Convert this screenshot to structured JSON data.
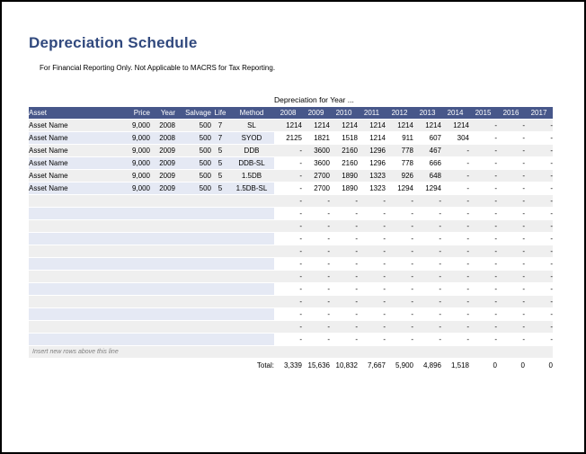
{
  "page": {
    "title": "Depreciation Schedule",
    "subtitle": "For Financial Reporting Only. Not Applicable to MACRS for Tax Reporting."
  },
  "table": {
    "group_header": "Depreciation for Year ...",
    "columns": [
      "Asset",
      "Price",
      "Year",
      "Salvage",
      "Life",
      "Method"
    ],
    "year_columns": [
      "2008",
      "2009",
      "2010",
      "2011",
      "2012",
      "2013",
      "2014",
      "2015",
      "2016",
      "2017"
    ],
    "rows": [
      {
        "asset": "Asset Name",
        "price": "9,000",
        "year": "2008",
        "salvage": "500",
        "life": "7",
        "method": "SL",
        "values": [
          "1214",
          "1214",
          "1214",
          "1214",
          "1214",
          "1214",
          "1214",
          "-",
          "-",
          "-"
        ]
      },
      {
        "asset": "Asset Name",
        "price": "9,000",
        "year": "2008",
        "salvage": "500",
        "life": "7",
        "method": "SYOD",
        "values": [
          "2125",
          "1821",
          "1518",
          "1214",
          "911",
          "607",
          "304",
          "-",
          "-",
          "-"
        ]
      },
      {
        "asset": "Asset Name",
        "price": "9,000",
        "year": "2009",
        "salvage": "500",
        "life": "5",
        "method": "DDB",
        "values": [
          "-",
          "3600",
          "2160",
          "1296",
          "778",
          "467",
          "-",
          "-",
          "-",
          "-"
        ]
      },
      {
        "asset": "Asset Name",
        "price": "9,000",
        "year": "2009",
        "salvage": "500",
        "life": "5",
        "method": "DDB-SL",
        "values": [
          "-",
          "3600",
          "2160",
          "1296",
          "778",
          "666",
          "-",
          "-",
          "-",
          "-"
        ]
      },
      {
        "asset": "Asset Name",
        "price": "9,000",
        "year": "2009",
        "salvage": "500",
        "life": "5",
        "method": "1.5DB",
        "values": [
          "-",
          "2700",
          "1890",
          "1323",
          "926",
          "648",
          "-",
          "-",
          "-",
          "-"
        ]
      },
      {
        "asset": "Asset Name",
        "price": "9,000",
        "year": "2009",
        "salvage": "500",
        "life": "5",
        "method": "1.5DB-SL",
        "values": [
          "-",
          "2700",
          "1890",
          "1323",
          "1294",
          "1294",
          "-",
          "-",
          "-",
          "-"
        ]
      }
    ],
    "empty_row_count": 12,
    "empty_cell": "-",
    "insert_note": "Insert new rows above this line",
    "total_label": "Total:",
    "totals": [
      "3,339",
      "15,636",
      "10,832",
      "7,667",
      "5,900",
      "4,896",
      "1,518",
      "0",
      "0",
      "0"
    ]
  },
  "colors": {
    "header_bg": "#47578A",
    "header_text": "#FFFFFF",
    "stripe_gray": "#EFEFEF",
    "stripe_lavender": "#E5E9F4",
    "title_text": "#31497E",
    "total_rule": "#000000"
  }
}
